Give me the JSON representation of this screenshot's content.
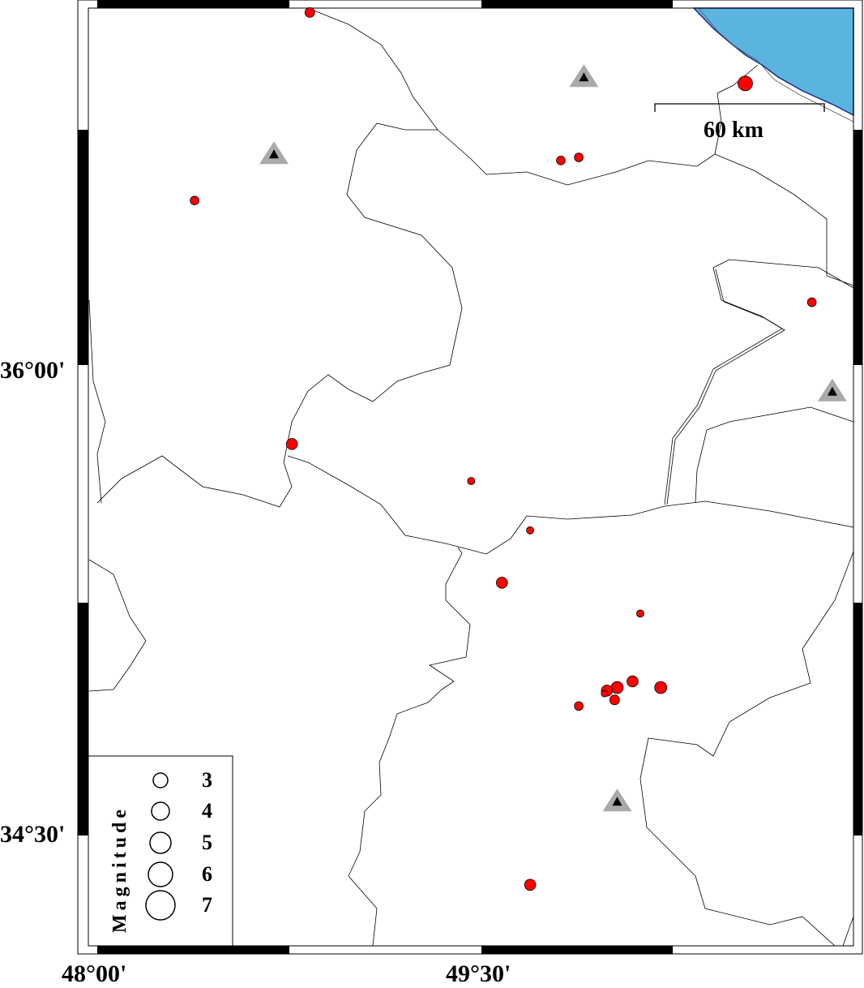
{
  "map": {
    "axis_labels": {
      "lat": [
        "36°00'",
        "34°30'"
      ],
      "lon": [
        "48°00'",
        "49°30'"
      ]
    },
    "scale_bar": {
      "label": "60 km"
    },
    "colors": {
      "sea": "#5bb3e0",
      "coast": "#1a2a8a",
      "event_fill": "#ff0000",
      "station_outer": "#aaaaaa",
      "station_inner": "#000000"
    },
    "legend": {
      "title": "Magnitude",
      "items": [
        {
          "label": "3",
          "magnitude": 3
        },
        {
          "label": "4",
          "magnitude": 4
        },
        {
          "label": "5",
          "magnitude": 5
        },
        {
          "label": "6",
          "magnitude": 6
        },
        {
          "label": "7",
          "magnitude": 7
        }
      ]
    },
    "events": [
      {
        "lon": 48.83,
        "lat": 37.17,
        "mag": 2.5
      },
      {
        "lon": 49.81,
        "lat": 36.69,
        "mag": 2.3
      },
      {
        "lon": 49.88,
        "lat": 36.7,
        "mag": 2.3
      },
      {
        "lon": 50.53,
        "lat": 36.94,
        "mag": 3.5
      },
      {
        "lon": 48.38,
        "lat": 36.56,
        "mag": 2.3
      },
      {
        "lon": 50.79,
        "lat": 36.23,
        "mag": 2.3
      },
      {
        "lon": 48.76,
        "lat": 35.77,
        "mag": 2.8
      },
      {
        "lon": 49.46,
        "lat": 35.65,
        "mag": 2.0
      },
      {
        "lon": 49.69,
        "lat": 35.49,
        "mag": 2.0
      },
      {
        "lon": 49.58,
        "lat": 35.32,
        "mag": 2.8
      },
      {
        "lon": 50.12,
        "lat": 35.22,
        "mag": 2.0
      },
      {
        "lon": 50.09,
        "lat": 35.0,
        "mag": 2.8
      },
      {
        "lon": 50.03,
        "lat": 34.98,
        "mag": 3.0
      },
      {
        "lon": 49.99,
        "lat": 34.97,
        "mag": 2.8
      },
      {
        "lon": 49.98,
        "lat": 34.96,
        "mag": 1.8
      },
      {
        "lon": 50.02,
        "lat": 34.94,
        "mag": 2.5
      },
      {
        "lon": 50.2,
        "lat": 34.98,
        "mag": 3.0
      },
      {
        "lon": 49.88,
        "lat": 34.92,
        "mag": 2.3
      },
      {
        "lon": 49.69,
        "lat": 34.34,
        "mag": 2.8
      }
    ],
    "stations": [
      {
        "lon": 49.9,
        "lat": 36.96
      },
      {
        "lon": 48.69,
        "lat": 36.71
      },
      {
        "lon": 50.87,
        "lat": 35.94
      },
      {
        "lon": 50.03,
        "lat": 34.61
      }
    ]
  }
}
